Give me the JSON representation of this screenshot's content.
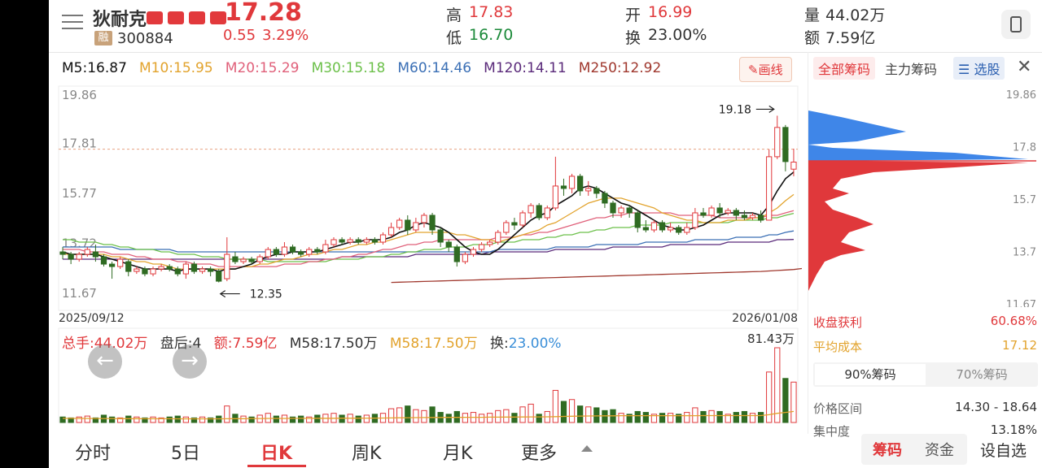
{
  "stock": {
    "name": "狄耐克",
    "code": "300884",
    "rong_label": "融",
    "price": "17.28",
    "change": "0.55",
    "change_pct": "3.29%",
    "high_label": "高",
    "high": "17.83",
    "low_label": "低",
    "low": "16.70",
    "open_label": "开",
    "open": "16.99",
    "turnover_label": "换",
    "turnover": "23.00%",
    "volume_label": "量",
    "volume": "44.02万",
    "amount_label": "额",
    "amount": "7.59亿"
  },
  "ma": {
    "m5": "M5:16.87",
    "m10": "M10:15.95",
    "m20": "M20:15.29",
    "m30": "M30:15.18",
    "m60": "M60:14.46",
    "m120": "M120:14.11",
    "m250": "M250:12.92",
    "draw_button": "画线"
  },
  "colors": {
    "up": "#e0383b",
    "down": "#2f6b22",
    "m5": "#111111",
    "m10": "#e2a32d",
    "m20": "#e0607a",
    "m30": "#6cc04a",
    "m60": "#3a6fb5",
    "m120": "#5a2a7a",
    "m250": "#a0382e"
  },
  "chart_data": {
    "type": "candlestick",
    "y_ticks": [
      "19.86",
      "17.81",
      "15.77",
      "13.72",
      "11.67"
    ],
    "ylim": [
      11.67,
      19.86
    ],
    "x_start": "2025/09/12",
    "x_end": "2026/01/08",
    "high_marker": "19.18",
    "low_marker": "12.35",
    "candles": [
      [
        13.6,
        13.5,
        13.8,
        13.3
      ],
      [
        13.5,
        13.3,
        13.6,
        13.1
      ],
      [
        13.3,
        13.5,
        13.6,
        13.2
      ],
      [
        13.5,
        13.7,
        13.8,
        13.4
      ],
      [
        13.6,
        13.4,
        13.9,
        13.2
      ],
      [
        13.4,
        13.1,
        13.5,
        13.0
      ],
      [
        13.1,
        13.0,
        13.2,
        12.5
      ],
      [
        13.0,
        13.3,
        13.4,
        12.9
      ],
      [
        13.2,
        12.8,
        13.3,
        12.6
      ],
      [
        12.8,
        12.9,
        13.0,
        12.7
      ],
      [
        12.9,
        12.7,
        13.0,
        12.6
      ],
      [
        12.7,
        12.9,
        13.0,
        12.6
      ],
      [
        12.9,
        13.0,
        13.1,
        12.8
      ],
      [
        13.0,
        12.9,
        13.1,
        12.8
      ],
      [
        12.9,
        12.7,
        13.0,
        12.6
      ],
      [
        12.7,
        13.1,
        13.2,
        12.5
      ],
      [
        13.1,
        12.8,
        13.2,
        12.7
      ],
      [
        12.8,
        12.9,
        13.0,
        12.7
      ],
      [
        12.9,
        12.8,
        13.0,
        12.6
      ],
      [
        12.8,
        12.4,
        12.9,
        12.35
      ],
      [
        12.5,
        13.5,
        14.2,
        12.4
      ],
      [
        13.4,
        13.2,
        13.6,
        13.1
      ],
      [
        13.2,
        13.3,
        13.4,
        13.1
      ],
      [
        13.3,
        13.2,
        13.4,
        13.1
      ],
      [
        13.2,
        13.4,
        13.5,
        13.1
      ],
      [
        13.4,
        13.7,
        13.8,
        13.3
      ],
      [
        13.7,
        13.5,
        13.8,
        13.4
      ],
      [
        13.5,
        13.8,
        14.0,
        13.4
      ],
      [
        13.8,
        13.6,
        13.9,
        13.5
      ],
      [
        13.6,
        13.5,
        13.7,
        13.4
      ],
      [
        13.5,
        13.7,
        13.8,
        13.4
      ],
      [
        13.7,
        13.6,
        13.8,
        13.5
      ],
      [
        13.6,
        13.9,
        14.1,
        13.5
      ],
      [
        13.9,
        14.1,
        14.2,
        13.8
      ],
      [
        14.1,
        14.0,
        14.2,
        13.9
      ],
      [
        14.0,
        14.1,
        14.2,
        13.9
      ],
      [
        14.1,
        14.0,
        14.2,
        13.9
      ],
      [
        14.0,
        14.1,
        14.2,
        13.9
      ],
      [
        14.1,
        14.0,
        14.2,
        13.9
      ],
      [
        14.0,
        14.3,
        14.4,
        13.9
      ],
      [
        14.3,
        14.6,
        14.8,
        14.2
      ],
      [
        14.6,
        14.9,
        15.0,
        14.5
      ],
      [
        14.9,
        14.5,
        15.1,
        14.3
      ],
      [
        14.5,
        14.8,
        15.0,
        14.4
      ],
      [
        14.8,
        15.1,
        15.2,
        14.6
      ],
      [
        15.1,
        14.5,
        15.2,
        14.3
      ],
      [
        14.5,
        14.0,
        14.6,
        13.8
      ],
      [
        14.0,
        13.8,
        14.1,
        13.6
      ],
      [
        13.8,
        13.2,
        13.9,
        13.0
      ],
      [
        13.2,
        13.5,
        13.6,
        13.1
      ],
      [
        13.5,
        13.7,
        13.8,
        13.4
      ],
      [
        13.7,
        13.9,
        14.0,
        13.6
      ],
      [
        13.9,
        14.0,
        14.1,
        13.8
      ],
      [
        14.0,
        14.4,
        14.5,
        13.9
      ],
      [
        14.4,
        14.8,
        14.9,
        14.3
      ],
      [
        14.8,
        14.7,
        15.0,
        14.5
      ],
      [
        14.7,
        15.2,
        15.3,
        14.6
      ],
      [
        15.2,
        15.5,
        15.6,
        15.0
      ],
      [
        15.5,
        15.0,
        15.6,
        14.9
      ],
      [
        15.0,
        15.4,
        15.5,
        14.9
      ],
      [
        15.4,
        16.3,
        17.5,
        15.3
      ],
      [
        16.3,
        16.2,
        16.6,
        15.9
      ],
      [
        16.2,
        16.7,
        16.8,
        16.0
      ],
      [
        16.7,
        16.1,
        16.8,
        15.9
      ],
      [
        16.1,
        16.2,
        16.5,
        15.9
      ],
      [
        16.2,
        16.0,
        16.3,
        15.8
      ],
      [
        16.0,
        15.6,
        16.1,
        15.4
      ],
      [
        15.6,
        15.2,
        15.7,
        15.0
      ],
      [
        15.2,
        15.4,
        15.5,
        15.0
      ],
      [
        15.4,
        15.2,
        15.5,
        15.0
      ],
      [
        15.2,
        14.6,
        15.3,
        14.4
      ],
      [
        14.6,
        14.5,
        14.9,
        14.4
      ],
      [
        14.5,
        14.8,
        14.9,
        14.4
      ],
      [
        14.8,
        14.5,
        14.9,
        14.4
      ],
      [
        14.5,
        14.6,
        14.8,
        14.4
      ],
      [
        14.6,
        14.4,
        14.7,
        14.3
      ],
      [
        14.4,
        14.6,
        14.8,
        14.3
      ],
      [
        14.6,
        15.2,
        15.4,
        14.5
      ],
      [
        15.2,
        15.1,
        15.4,
        15.0
      ],
      [
        15.1,
        15.4,
        15.5,
        15.0
      ],
      [
        15.4,
        15.2,
        15.6,
        15.0
      ],
      [
        15.2,
        15.3,
        15.4,
        15.1
      ],
      [
        15.3,
        15.1,
        15.4,
        14.9
      ],
      [
        15.1,
        15.0,
        15.3,
        14.9
      ],
      [
        15.0,
        15.1,
        15.2,
        14.9
      ],
      [
        15.1,
        14.9,
        15.3,
        14.8
      ],
      [
        14.9,
        17.5,
        17.8,
        14.9
      ],
      [
        17.5,
        18.7,
        19.18,
        17.4
      ],
      [
        18.7,
        17.3,
        18.8,
        16.9
      ],
      [
        16.99,
        17.28,
        17.83,
        16.7
      ]
    ],
    "ma_series": {
      "m5": [
        13.6,
        13.5,
        13.5,
        13.5,
        13.5,
        13.4,
        13.3,
        13.2,
        13.1,
        13.0,
        12.9,
        12.9,
        12.9,
        12.9,
        12.8,
        12.9,
        12.9,
        12.9,
        12.9,
        12.8,
        12.9,
        12.9,
        13.0,
        13.1,
        13.3,
        13.4,
        13.5,
        13.5,
        13.6,
        13.6,
        13.6,
        13.6,
        13.7,
        13.8,
        13.9,
        14.0,
        14.0,
        14.1,
        14.1,
        14.1,
        14.2,
        14.4,
        14.5,
        14.7,
        14.8,
        14.7,
        14.6,
        14.4,
        14.1,
        13.8,
        13.6,
        13.5,
        13.5,
        13.7,
        14.0,
        14.3,
        14.6,
        14.9,
        15.1,
        15.2,
        15.5,
        15.7,
        15.9,
        16.2,
        16.3,
        16.2,
        16.0,
        15.8,
        15.6,
        15.5,
        15.3,
        15.1,
        14.9,
        14.7,
        14.6,
        14.5,
        14.5,
        14.6,
        14.7,
        14.9,
        15.1,
        15.2,
        15.2,
        15.2,
        15.2,
        15.1,
        15.5,
        16.1,
        16.6,
        16.87
      ],
      "m10": [
        13.5,
        13.5,
        13.5,
        13.5,
        13.5,
        13.5,
        13.4,
        13.4,
        13.3,
        13.2,
        13.2,
        13.1,
        13.1,
        13.0,
        12.9,
        12.9,
        12.9,
        12.9,
        12.9,
        12.9,
        12.9,
        12.9,
        13.0,
        13.0,
        13.1,
        13.1,
        13.2,
        13.3,
        13.3,
        13.4,
        13.5,
        13.5,
        13.6,
        13.7,
        13.7,
        13.8,
        13.9,
        13.9,
        14.0,
        14.0,
        14.1,
        14.2,
        14.3,
        14.4,
        14.4,
        14.4,
        14.4,
        14.4,
        14.3,
        14.3,
        14.2,
        14.1,
        14.1,
        14.0,
        14.1,
        14.2,
        14.3,
        14.4,
        14.5,
        14.7,
        14.8,
        15.0,
        15.2,
        15.4,
        15.6,
        15.7,
        15.8,
        15.8,
        15.8,
        15.7,
        15.6,
        15.5,
        15.4,
        15.2,
        15.1,
        15.0,
        14.9,
        14.9,
        14.8,
        14.8,
        14.8,
        14.9,
        14.9,
        14.9,
        15.0,
        15.0,
        15.2,
        15.4,
        15.7,
        15.95
      ],
      "m20": [
        13.7,
        13.7,
        13.7,
        13.6,
        13.6,
        13.6,
        13.5,
        13.5,
        13.5,
        13.4,
        13.4,
        13.3,
        13.3,
        13.3,
        13.2,
        13.2,
        13.1,
        13.1,
        13.1,
        13.0,
        13.0,
        13.0,
        13.0,
        13.0,
        13.0,
        13.0,
        13.0,
        13.1,
        13.1,
        13.1,
        13.2,
        13.2,
        13.3,
        13.3,
        13.4,
        13.4,
        13.5,
        13.5,
        13.6,
        13.7,
        13.7,
        13.8,
        13.9,
        13.9,
        14.0,
        14.0,
        14.1,
        14.1,
        14.1,
        14.1,
        14.1,
        14.1,
        14.1,
        14.2,
        14.2,
        14.2,
        14.3,
        14.3,
        14.4,
        14.4,
        14.5,
        14.6,
        14.7,
        14.8,
        14.9,
        15.0,
        15.0,
        15.1,
        15.1,
        15.2,
        15.2,
        15.2,
        15.2,
        15.2,
        15.2,
        15.1,
        15.1,
        15.1,
        15.1,
        15.1,
        15.0,
        15.0,
        15.0,
        15.0,
        15.0,
        15.0,
        15.1,
        15.1,
        15.2,
        15.29
      ],
      "m30": [
        14.1,
        14.1,
        14.0,
        14.0,
        14.0,
        13.9,
        13.9,
        13.8,
        13.8,
        13.7,
        13.7,
        13.7,
        13.6,
        13.6,
        13.5,
        13.5,
        13.5,
        13.4,
        13.4,
        13.4,
        13.3,
        13.3,
        13.3,
        13.3,
        13.3,
        13.2,
        13.2,
        13.2,
        13.2,
        13.2,
        13.2,
        13.2,
        13.2,
        13.3,
        13.3,
        13.3,
        13.3,
        13.4,
        13.4,
        13.4,
        13.5,
        13.5,
        13.6,
        13.6,
        13.7,
        13.7,
        13.7,
        13.8,
        13.8,
        13.8,
        13.9,
        13.9,
        13.9,
        14.0,
        14.0,
        14.0,
        14.1,
        14.1,
        14.1,
        14.2,
        14.2,
        14.3,
        14.3,
        14.4,
        14.4,
        14.5,
        14.5,
        14.6,
        14.6,
        14.6,
        14.7,
        14.7,
        14.7,
        14.7,
        14.8,
        14.8,
        14.8,
        14.8,
        14.8,
        14.8,
        14.8,
        14.8,
        14.9,
        14.9,
        14.9,
        14.9,
        15.0,
        15.0,
        15.1,
        15.18
      ],
      "m60": [
        13.8,
        13.8,
        13.8,
        13.8,
        13.8,
        13.8,
        13.8,
        13.7,
        13.7,
        13.7,
        13.7,
        13.7,
        13.7,
        13.7,
        13.6,
        13.6,
        13.6,
        13.6,
        13.6,
        13.6,
        13.6,
        13.6,
        13.6,
        13.6,
        13.6,
        13.6,
        13.6,
        13.6,
        13.6,
        13.6,
        13.6,
        13.6,
        13.6,
        13.6,
        13.6,
        13.6,
        13.6,
        13.6,
        13.6,
        13.6,
        13.6,
        13.6,
        13.6,
        13.6,
        13.6,
        13.6,
        13.6,
        13.6,
        13.6,
        13.6,
        13.6,
        13.6,
        13.6,
        13.7,
        13.7,
        13.7,
        13.7,
        13.7,
        13.7,
        13.7,
        13.8,
        13.8,
        13.8,
        13.8,
        13.8,
        13.9,
        13.9,
        13.9,
        13.9,
        13.9,
        13.9,
        14.0,
        14.0,
        14.0,
        14.0,
        14.0,
        14.0,
        14.1,
        14.1,
        14.1,
        14.1,
        14.1,
        14.2,
        14.2,
        14.2,
        14.2,
        14.3,
        14.3,
        14.4,
        14.46
      ],
      "m120": [
        13.3,
        13.3,
        13.3,
        13.3,
        13.3,
        13.3,
        13.3,
        13.3,
        13.3,
        13.3,
        13.3,
        13.3,
        13.3,
        13.3,
        13.3,
        13.3,
        13.3,
        13.3,
        13.3,
        13.3,
        13.3,
        13.3,
        13.3,
        13.3,
        13.3,
        13.3,
        13.3,
        13.3,
        13.3,
        13.3,
        13.3,
        13.3,
        13.3,
        13.3,
        13.4,
        13.4,
        13.4,
        13.4,
        13.4,
        13.4,
        13.4,
        13.4,
        13.4,
        13.5,
        13.5,
        13.5,
        13.5,
        13.5,
        13.5,
        13.5,
        13.5,
        13.5,
        13.6,
        13.6,
        13.6,
        13.6,
        13.6,
        13.6,
        13.6,
        13.6,
        13.7,
        13.7,
        13.7,
        13.7,
        13.7,
        13.7,
        13.7,
        13.8,
        13.8,
        13.8,
        13.8,
        13.8,
        13.8,
        13.8,
        13.9,
        13.9,
        13.9,
        13.9,
        13.9,
        13.9,
        13.9,
        14.0,
        14.0,
        14.0,
        14.0,
        14.0,
        14.0,
        14.1,
        14.1,
        14.11
      ],
      "m250_start": 40,
      "m250": [
        12.35,
        12.36,
        12.37,
        12.38,
        12.39,
        12.4,
        12.41,
        12.42,
        12.43,
        12.44,
        12.45,
        12.46,
        12.47,
        12.48,
        12.49,
        12.5,
        12.51,
        12.52,
        12.53,
        12.54,
        12.55,
        12.56,
        12.57,
        12.58,
        12.59,
        12.6,
        12.61,
        12.62,
        12.63,
        12.64,
        12.65,
        12.66,
        12.67,
        12.68,
        12.69,
        12.7,
        12.71,
        12.72,
        12.73,
        12.74,
        12.75,
        12.76,
        12.77,
        12.78,
        12.79,
        12.8,
        12.82,
        12.84,
        12.86,
        12.88,
        12.92
      ]
    },
    "volumes": [
      6,
      5,
      6,
      7,
      5,
      8,
      6,
      5,
      7,
      6,
      5,
      6,
      5,
      6,
      7,
      6,
      5,
      6,
      5,
      7,
      18,
      9,
      7,
      6,
      8,
      10,
      7,
      8,
      6,
      7,
      6,
      8,
      9,
      10,
      8,
      9,
      7,
      8,
      9,
      10,
      15,
      16,
      18,
      14,
      13,
      17,
      11,
      9,
      12,
      10,
      11,
      9,
      10,
      13,
      14,
      10,
      17,
      20,
      9,
      12,
      35,
      23,
      25,
      18,
      17,
      16,
      13,
      14,
      10,
      9,
      12,
      11,
      9,
      10,
      10,
      9,
      11,
      16,
      12,
      13,
      12,
      9,
      11,
      12,
      10,
      11,
      55,
      81.43,
      48,
      44.02
    ],
    "vol_ma": [
      4.5,
      4.5,
      4.4,
      4.4,
      4.3,
      4.3,
      4.3,
      4.2,
      4.2,
      4.2,
      4.1,
      4.1,
      4.1,
      4.1,
      4.0,
      4.0,
      4.0,
      4.0,
      4.0,
      4.0,
      4.1,
      4.2,
      4.2,
      4.3,
      4.3,
      4.4,
      4.4,
      4.4,
      4.5,
      4.5,
      4.5,
      4.6,
      4.6,
      4.6,
      4.7,
      4.7,
      4.7,
      4.8,
      4.8,
      4.9,
      5.0,
      5.1,
      5.2,
      5.3,
      5.4,
      5.5,
      5.5,
      5.6,
      5.6,
      5.7,
      5.7,
      5.7,
      5.8,
      5.8,
      5.9,
      5.9,
      6.0,
      6.1,
      6.1,
      6.2,
      6.4,
      6.6,
      6.8,
      7.0,
      7.1,
      7.2,
      7.3,
      7.3,
      7.4,
      7.4,
      7.4,
      7.4,
      7.4,
      7.4,
      7.4,
      7.4,
      7.4,
      7.4,
      7.5,
      7.5,
      7.5,
      7.5,
      7.5,
      7.5,
      7.5,
      7.5,
      8.5,
      10.0,
      11.0,
      12.0
    ],
    "vol_max_label": "81.43万",
    "chips": {
      "price_axis": [
        "19.86",
        "17.8",
        "15.7",
        "13.7",
        "11.67"
      ]
    }
  },
  "volume_info": {
    "total": "总手:44.02万",
    "after": "盘后:4",
    "amount": "额:7.59亿",
    "m58a": "M58:17.50万",
    "m58b": "M58:17.50万",
    "turnover_label": "换:",
    "turnover": "23.00%"
  },
  "chips_panel": {
    "tab_all": "全部筹码",
    "tab_main": "主力筹码",
    "tab_select": "选股",
    "profit_label": "收盘获利",
    "profit_value": "60.68%",
    "avg_cost_label": "平均成本",
    "avg_cost_value": "17.12",
    "chip90": "90%筹码",
    "chip70": "70%筹码",
    "range_label": "价格区间",
    "range_value": "14.30 - 18.64",
    "conc_label": "集中度",
    "conc_value": "13.18%"
  },
  "bottom_tabs": [
    "分时",
    "5日",
    "日K",
    "周K",
    "月K",
    "更多"
  ],
  "bottom_right": [
    "筹码",
    "资金",
    "设自选"
  ]
}
